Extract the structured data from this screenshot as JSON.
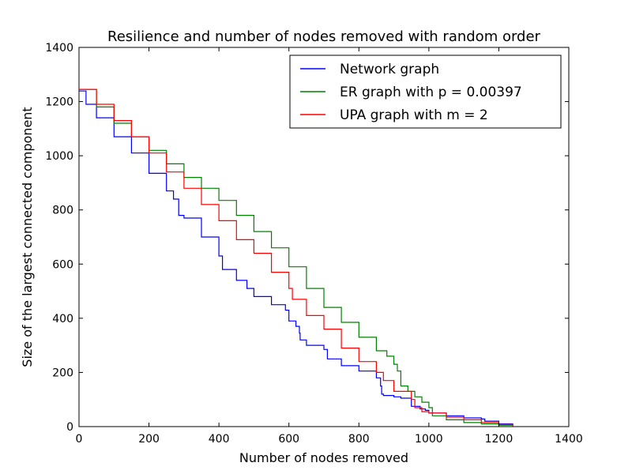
{
  "chart_data": {
    "type": "line",
    "title": "Resilience and number of nodes removed with random order",
    "xlabel": "Number of nodes removed",
    "ylabel": "Size of the largest connected component",
    "xlim": [
      0,
      1400
    ],
    "ylim": [
      0,
      1400
    ],
    "xticks": [
      0,
      200,
      400,
      600,
      800,
      1000,
      1200,
      1400
    ],
    "yticks": [
      0,
      200,
      400,
      600,
      800,
      1000,
      1200,
      1400
    ],
    "grid": false,
    "legend_position": "top-right",
    "series": [
      {
        "name": "Network graph",
        "color": "#0000ff",
        "points": [
          [
            0,
            1239
          ],
          [
            20,
            1190
          ],
          [
            50,
            1140
          ],
          [
            100,
            1070
          ],
          [
            150,
            1010
          ],
          [
            200,
            935
          ],
          [
            250,
            870
          ],
          [
            270,
            840
          ],
          [
            285,
            780
          ],
          [
            300,
            770
          ],
          [
            350,
            700
          ],
          [
            400,
            630
          ],
          [
            410,
            580
          ],
          [
            450,
            540
          ],
          [
            480,
            510
          ],
          [
            500,
            480
          ],
          [
            550,
            450
          ],
          [
            590,
            430
          ],
          [
            600,
            390
          ],
          [
            620,
            370
          ],
          [
            630,
            345
          ],
          [
            632,
            320
          ],
          [
            650,
            300
          ],
          [
            700,
            285
          ],
          [
            710,
            250
          ],
          [
            750,
            225
          ],
          [
            800,
            205
          ],
          [
            850,
            180
          ],
          [
            862,
            150
          ],
          [
            865,
            120
          ],
          [
            870,
            115
          ],
          [
            900,
            110
          ],
          [
            920,
            105
          ],
          [
            950,
            75
          ],
          [
            975,
            65
          ],
          [
            990,
            60
          ],
          [
            1000,
            50
          ],
          [
            1050,
            40
          ],
          [
            1100,
            32
          ],
          [
            1150,
            28
          ],
          [
            1160,
            20
          ],
          [
            1200,
            10
          ],
          [
            1240,
            2
          ]
        ]
      },
      {
        "name": "ER graph with p = 0.00397",
        "color": "#008000",
        "points": [
          [
            0,
            1245
          ],
          [
            50,
            1180
          ],
          [
            100,
            1120
          ],
          [
            150,
            1070
          ],
          [
            200,
            1020
          ],
          [
            250,
            970
          ],
          [
            300,
            920
          ],
          [
            350,
            880
          ],
          [
            400,
            835
          ],
          [
            450,
            780
          ],
          [
            500,
            720
          ],
          [
            550,
            660
          ],
          [
            600,
            590
          ],
          [
            650,
            510
          ],
          [
            700,
            440
          ],
          [
            750,
            385
          ],
          [
            800,
            330
          ],
          [
            850,
            280
          ],
          [
            880,
            260
          ],
          [
            900,
            230
          ],
          [
            910,
            205
          ],
          [
            920,
            150
          ],
          [
            940,
            130
          ],
          [
            960,
            110
          ],
          [
            980,
            90
          ],
          [
            1000,
            70
          ],
          [
            1010,
            40
          ],
          [
            1050,
            25
          ],
          [
            1100,
            15
          ],
          [
            1150,
            10
          ],
          [
            1200,
            5
          ],
          [
            1240,
            2
          ]
        ]
      },
      {
        "name": "UPA graph with m = 2",
        "color": "#ff0000",
        "points": [
          [
            0,
            1245
          ],
          [
            50,
            1190
          ],
          [
            100,
            1130
          ],
          [
            150,
            1070
          ],
          [
            200,
            1010
          ],
          [
            250,
            940
          ],
          [
            300,
            880
          ],
          [
            350,
            820
          ],
          [
            400,
            760
          ],
          [
            450,
            690
          ],
          [
            500,
            640
          ],
          [
            550,
            570
          ],
          [
            600,
            510
          ],
          [
            610,
            470
          ],
          [
            650,
            410
          ],
          [
            700,
            360
          ],
          [
            750,
            290
          ],
          [
            800,
            240
          ],
          [
            850,
            200
          ],
          [
            870,
            170
          ],
          [
            900,
            130
          ],
          [
            950,
            100
          ],
          [
            960,
            70
          ],
          [
            980,
            55
          ],
          [
            1000,
            50
          ],
          [
            1050,
            35
          ],
          [
            1100,
            25
          ],
          [
            1150,
            15
          ],
          [
            1200,
            8
          ],
          [
            1240,
            3
          ]
        ]
      }
    ]
  }
}
